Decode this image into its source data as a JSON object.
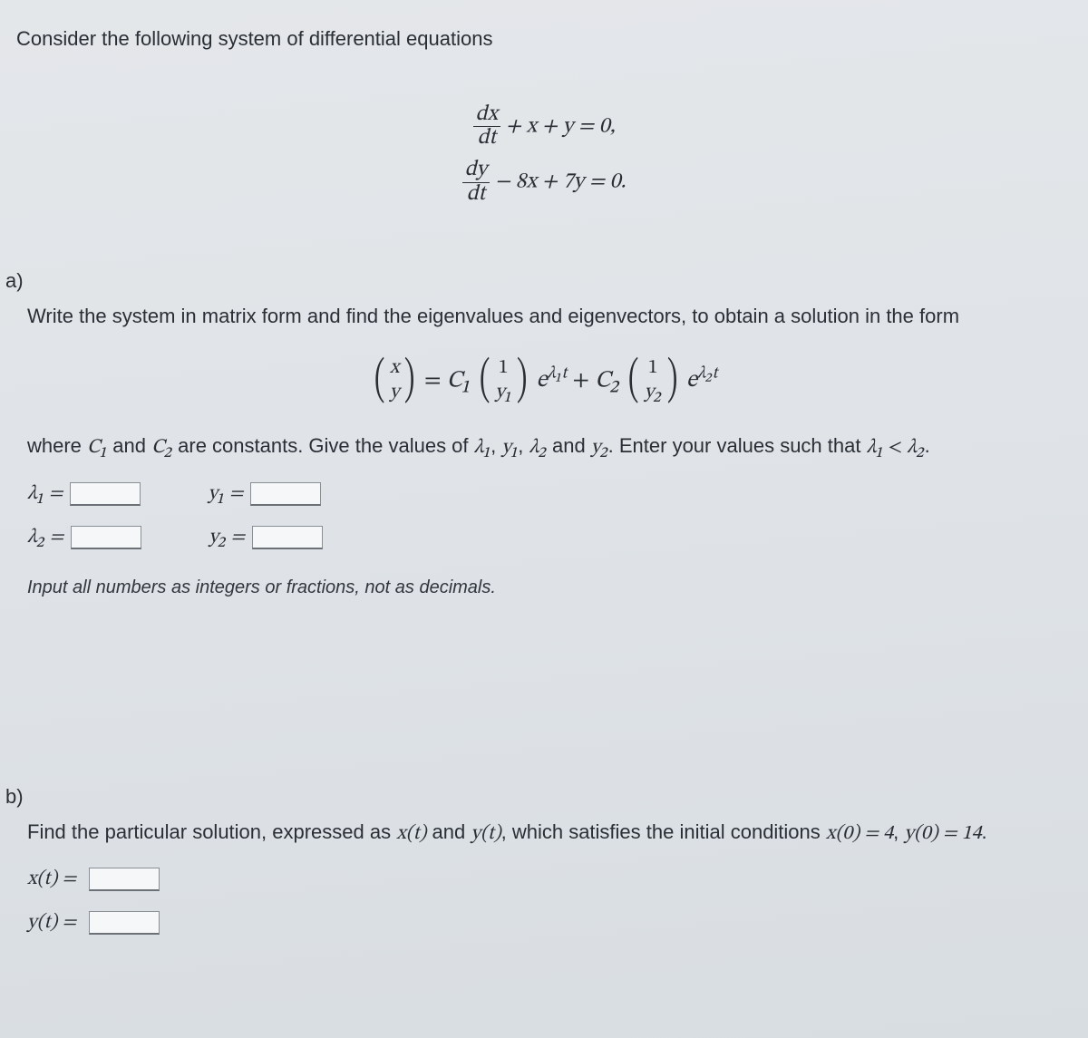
{
  "intro": "Consider the following system of differential equations",
  "equations": {
    "eq1_lhs_num": "dx",
    "eq1_lhs_den": "dt",
    "eq1_rest": " + x + y = 0,",
    "eq2_lhs_num": "dy",
    "eq2_lhs_den": "dt",
    "eq2_rest": " − 8x + 7y = 0."
  },
  "partA": {
    "label": "a)",
    "text": "Write the system in matrix form and find the eigenvalues and eigenvectors, to obtain a solution in the form",
    "vec_top": "x",
    "vec_bot": "y",
    "eq_sign": " = ",
    "C1": "C₁",
    "v1_top": "1",
    "v1_bot": "y₁",
    "exp1_base": "e",
    "exp1_sup": "λ₁t",
    "plus": " + ",
    "C2": "C₂",
    "v2_top": "1",
    "v2_bot": "y₂",
    "exp2_base": "e",
    "exp2_sup": "λ₂t",
    "where_text_1": "where ",
    "where_C1": "C₁",
    "where_and": " and ",
    "where_C2": "C₂",
    "where_text_2": " are constants. Give the values of ",
    "where_l1": "λ₁",
    "comma1": ", ",
    "where_y1": "y₁",
    "comma2": ", ",
    "where_l2": "λ₂",
    "where_text_3": " and ",
    "where_y2": "y₂",
    "where_text_4": ". Enter your values such that ",
    "where_l1b": "λ₁",
    "lt": " < ",
    "where_l2b": "λ₂",
    "period": ".",
    "label_l1": "λ₁ =",
    "label_y1": "y₁ =",
    "label_l2": "λ₂ =",
    "label_y2": "y₂ =",
    "hint": "Input all numbers as integers or fractions, not as decimals."
  },
  "partB": {
    "label": "b)",
    "text_1": "Find the particular solution, expressed as ",
    "xt": "x(t)",
    "text_2": " and ",
    "yt": "y(t)",
    "text_3": ", which satisfies the initial conditions ",
    "ic_x": "x(0) = 4",
    "ic_sep": ", ",
    "ic_y": "y(0) = 14",
    "text_4": ".",
    "label_xt": "x(t) =",
    "label_yt": "y(t) ="
  },
  "style": {
    "background_gradient": [
      "#e4e7ea",
      "#dfe3e7",
      "#d8dde2"
    ],
    "text_color": "#2a2f36",
    "input_border": "#8a8f95",
    "input_bg": "#f5f7f8",
    "body_fontsize": 22,
    "math_fontsize": 24,
    "solution_fontsize": 26
  }
}
